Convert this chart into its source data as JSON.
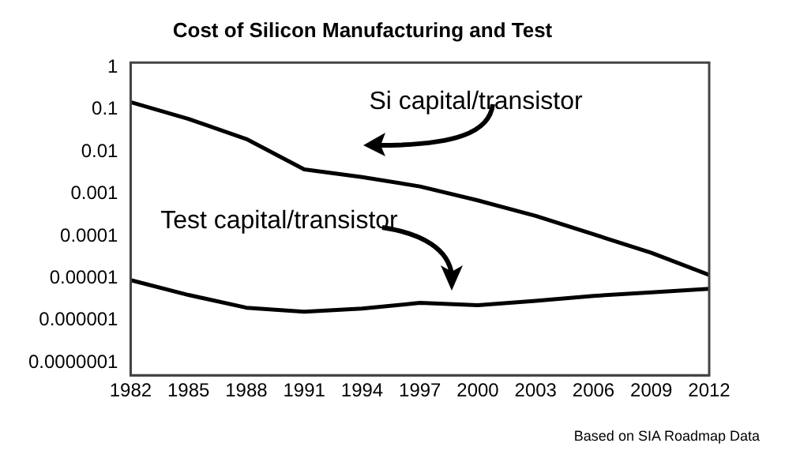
{
  "chart_data": {
    "type": "line",
    "title": "Cost of Silicon Manufacturing and Test",
    "x": [
      1982,
      1985,
      1988,
      1991,
      1994,
      1997,
      2000,
      2003,
      2006,
      2009,
      2012
    ],
    "series": [
      {
        "name": "Si capital/transistor",
        "color": "#000000",
        "values": [
          0.15,
          0.06,
          0.02,
          0.0038,
          0.0025,
          0.0015,
          0.0007,
          0.0003,
          0.00011,
          4e-05,
          1.2e-05
        ]
      },
      {
        "name": "Test capital/transistor",
        "color": "#000000",
        "values": [
          9e-06,
          4e-06,
          2e-06,
          1.6e-06,
          1.9e-06,
          2.6e-06,
          2.3e-06,
          2.9e-06,
          3.8e-06,
          4.6e-06,
          5.6e-06
        ]
      }
    ],
    "log": "y",
    "xlim": [
      1982,
      2012
    ],
    "xticks": [
      1982,
      1985,
      1988,
      1991,
      1994,
      1997,
      2000,
      2003,
      2006,
      2009,
      2012
    ],
    "ylim": [
      5e-08,
      1.3
    ],
    "yticks": [
      {
        "value": 1e-07,
        "label": "0.0000001"
      },
      {
        "value": 1e-06,
        "label": "0.000001"
      },
      {
        "value": 1e-05,
        "label": "0.00001"
      },
      {
        "value": 0.0001,
        "label": "0.0001"
      },
      {
        "value": 0.001,
        "label": "0.001"
      },
      {
        "value": 0.01,
        "label": "0.01"
      },
      {
        "value": 0.1,
        "label": "0.1"
      },
      {
        "value": 1,
        "label": "1"
      }
    ],
    "grid": false,
    "legend": false,
    "marker": "none",
    "line_style": "solid",
    "annotations": [
      "Based on SIA Roadmap Data"
    ]
  }
}
